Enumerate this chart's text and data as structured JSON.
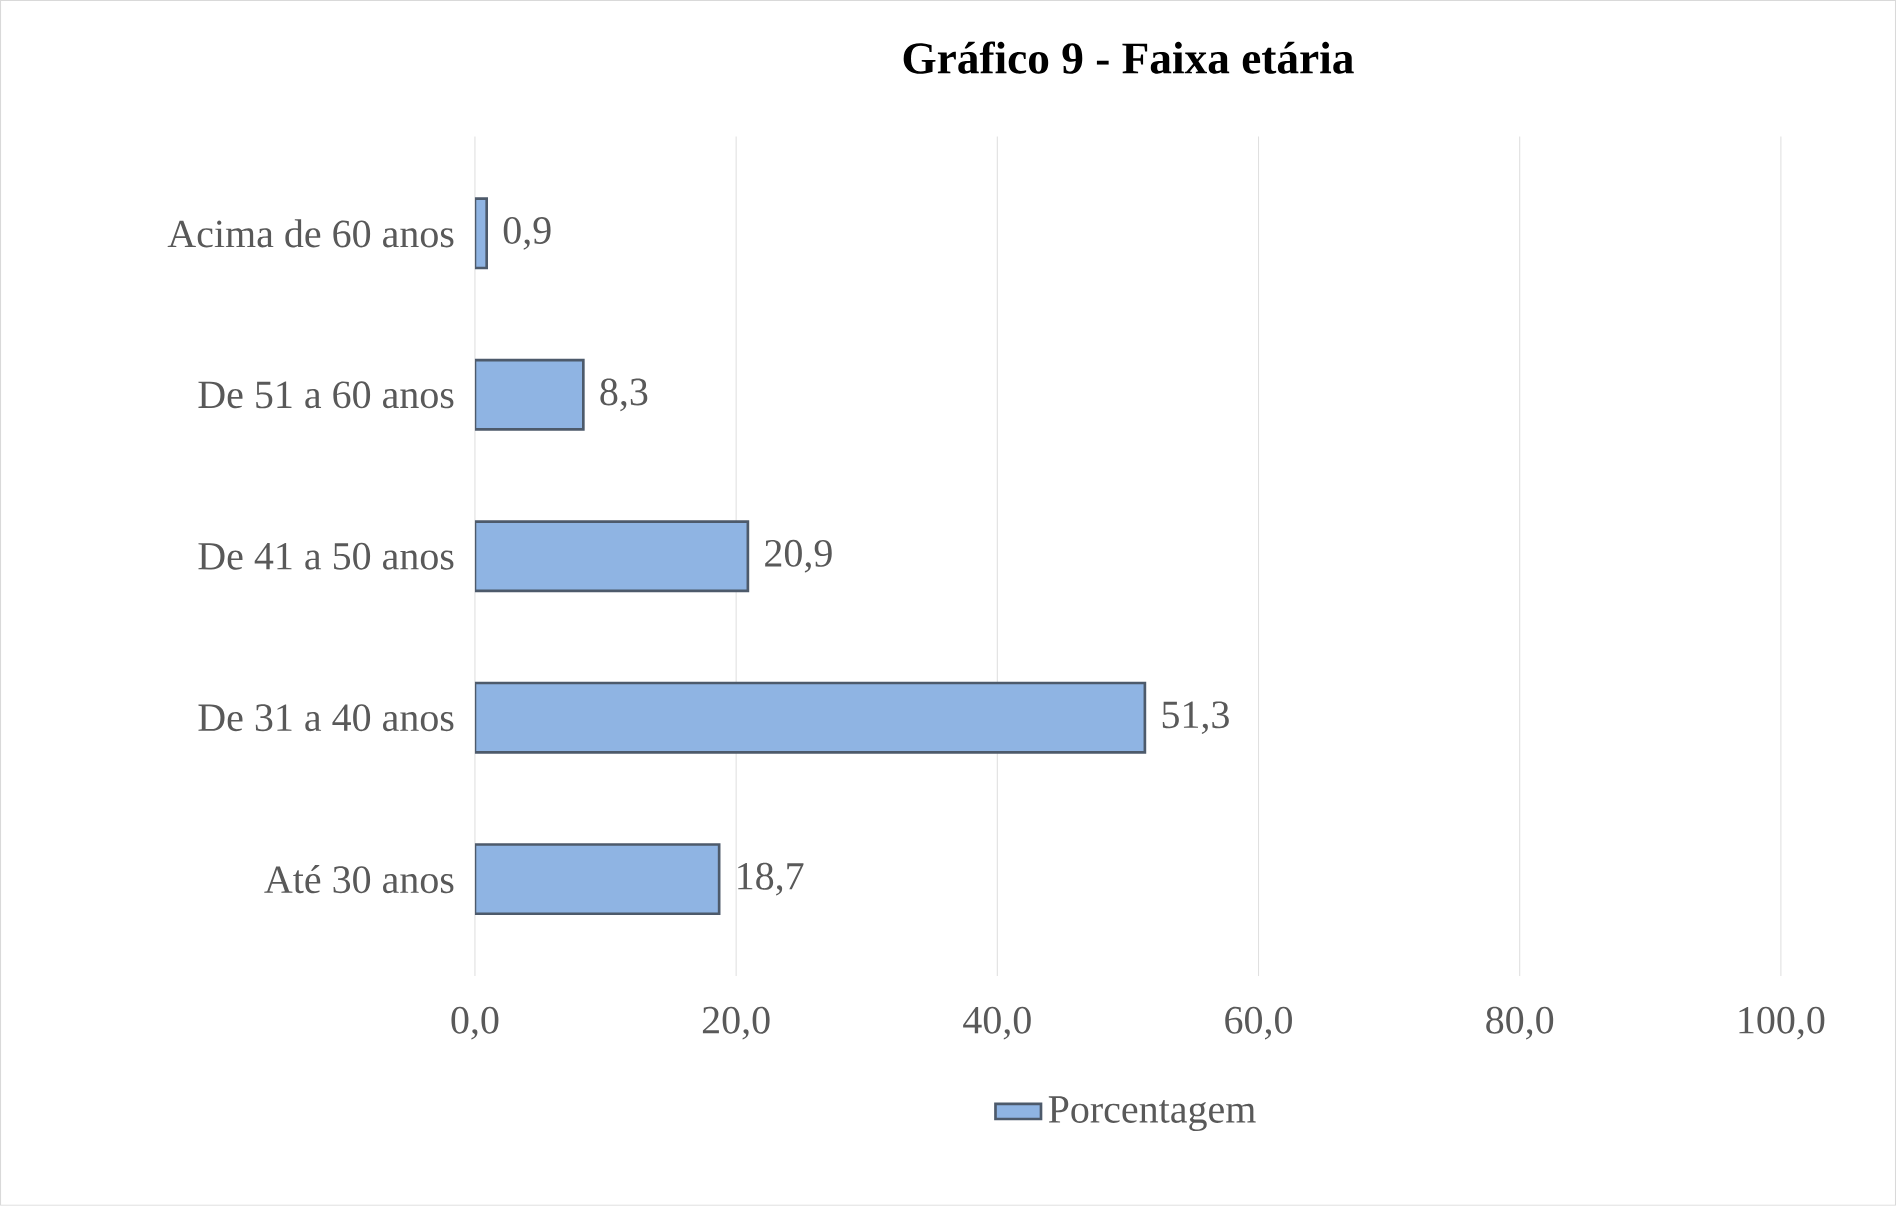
{
  "chart_data": {
    "type": "bar",
    "orientation": "horizontal",
    "title": "Gráfico 9 - Faixa etária",
    "categories": [
      "Acima de 60 anos",
      "De 51 a 60 anos",
      "De 41 a 50 anos",
      "De 31 a 40 anos",
      "Até 30 anos"
    ],
    "series": [
      {
        "name": "Porcentagem",
        "color": "#8fb4e3",
        "values": [
          0.9,
          8.3,
          20.9,
          51.3,
          18.7
        ],
        "value_labels": [
          "0,9",
          "8,3",
          "20,9",
          "51,3",
          "18,7"
        ]
      }
    ],
    "xlim": [
      0,
      100
    ],
    "xticks": [
      {
        "value": 0,
        "label": "0,0"
      },
      {
        "value": 20,
        "label": "20,0"
      },
      {
        "value": 40,
        "label": "40,0"
      },
      {
        "value": 60,
        "label": "60,0"
      },
      {
        "value": 80,
        "label": "80,0"
      },
      {
        "value": 100,
        "label": "100,0"
      }
    ],
    "grid": "x",
    "legend": "bottom"
  }
}
